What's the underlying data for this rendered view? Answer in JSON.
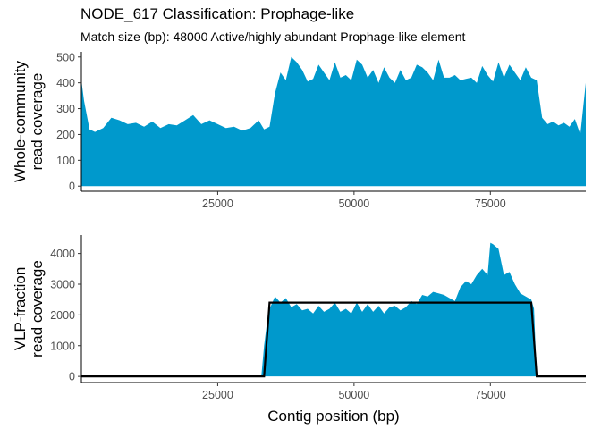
{
  "title": "NODE_617 Classification: Prophage-like",
  "subtitle": "Match size (bp): 48000 Active/highly abundant Prophage-like element",
  "colors": {
    "fill": "#0099CC",
    "line": "#000000",
    "axis": "#000000",
    "tick_text": "#4d4d4d"
  },
  "chart_data": [
    {
      "type": "area",
      "panel": "top",
      "ylabel": [
        "Whole-community",
        "read coverage"
      ],
      "xlabel": "",
      "xlim": [
        0,
        92500
      ],
      "ylim": [
        -20,
        520
      ],
      "xticks": [
        25000,
        50000,
        75000
      ],
      "yticks": [
        0,
        100,
        200,
        300,
        400,
        500
      ],
      "x": [
        0,
        500,
        1500,
        2500,
        4000,
        5500,
        7000,
        8500,
        10000,
        11500,
        13000,
        14500,
        16000,
        17500,
        19000,
        20500,
        22000,
        23500,
        25000,
        26500,
        28000,
        29500,
        31000,
        32500,
        33500,
        34500,
        35500,
        36500,
        37500,
        38500,
        39500,
        40500,
        41500,
        42500,
        43500,
        44500,
        45500,
        46500,
        47500,
        48500,
        49500,
        50500,
        51500,
        52500,
        53500,
        54500,
        55500,
        56500,
        57500,
        58500,
        59500,
        60500,
        61500,
        62500,
        63500,
        64500,
        65500,
        66500,
        67500,
        68500,
        69500,
        70500,
        71500,
        72500,
        73500,
        74500,
        75500,
        76500,
        77500,
        78500,
        79500,
        80500,
        81500,
        82500,
        83500,
        84500,
        85500,
        86500,
        87500,
        88500,
        89500,
        90500,
        91500,
        92500
      ],
      "values": [
        410,
        330,
        220,
        210,
        225,
        265,
        255,
        240,
        245,
        230,
        250,
        225,
        240,
        235,
        255,
        275,
        240,
        255,
        240,
        225,
        230,
        215,
        225,
        255,
        220,
        230,
        360,
        440,
        410,
        500,
        480,
        450,
        405,
        415,
        470,
        440,
        410,
        480,
        420,
        430,
        410,
        490,
        470,
        420,
        450,
        400,
        460,
        420,
        400,
        450,
        410,
        420,
        470,
        460,
        440,
        410,
        490,
        420,
        420,
        430,
        410,
        415,
        420,
        400,
        465,
        430,
        405,
        480,
        420,
        470,
        440,
        410,
        460,
        420,
        410,
        265,
        240,
        250,
        235,
        245,
        230,
        260,
        200,
        400
      ]
    },
    {
      "type": "area",
      "panel": "bottom",
      "ylabel": [
        "VLP-fraction",
        "read coverage"
      ],
      "xlabel": "Contig position (bp)",
      "xlim": [
        0,
        92500
      ],
      "ylim": [
        -200,
        4600
      ],
      "xticks": [
        25000,
        50000,
        75000
      ],
      "yticks": [
        0,
        1000,
        2000,
        3000,
        4000
      ],
      "x": [
        0,
        33000,
        33500,
        34000,
        34500,
        35500,
        36500,
        37500,
        38500,
        39500,
        40500,
        41500,
        42500,
        43500,
        44500,
        45500,
        46500,
        47500,
        48500,
        49500,
        50500,
        51500,
        52500,
        53500,
        54500,
        55500,
        56500,
        57500,
        58500,
        59500,
        60500,
        61500,
        62500,
        63500,
        64500,
        65500,
        66500,
        67500,
        68500,
        69500,
        70500,
        71500,
        72500,
        73500,
        74500,
        75000,
        75500,
        76500,
        77500,
        78500,
        79500,
        80500,
        81500,
        82500,
        83000,
        83500,
        92500
      ],
      "values": [
        0,
        0,
        1000,
        1700,
        2200,
        2600,
        2400,
        2550,
        2250,
        2350,
        2150,
        2200,
        2050,
        2300,
        2100,
        2200,
        2400,
        2100,
        2200,
        2050,
        2400,
        2100,
        2350,
        2100,
        2300,
        2050,
        2250,
        2300,
        2150,
        2250,
        2450,
        2350,
        2650,
        2600,
        2750,
        2700,
        2650,
        2550,
        2450,
        2900,
        3100,
        3000,
        3300,
        3500,
        3300,
        4350,
        4300,
        4150,
        3300,
        3400,
        3000,
        2700,
        2600,
        2500,
        2200,
        0,
        0
      ],
      "fit_line": {
        "x": [
          0,
          33500,
          34500,
          82500,
          83500,
          92500
        ],
        "values": [
          0,
          0,
          2400,
          2400,
          0,
          0
        ]
      }
    }
  ]
}
